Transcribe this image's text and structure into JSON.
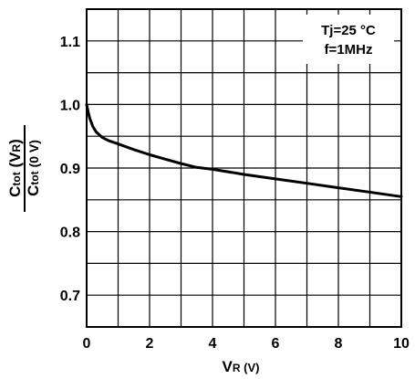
{
  "chart_data": {
    "type": "line",
    "annotation": [
      "Tj=25 °C",
      "f=1MHz"
    ],
    "xlabel": {
      "main": "V",
      "sub": "R",
      "unit": " (V)"
    },
    "ylabel": {
      "numerator": {
        "main": "C",
        "sub": "tot",
        "paren_main": " (V",
        "paren_sub": "R",
        "close": ")"
      },
      "denominator": {
        "main": "C",
        "sub": "tot",
        "rest": " (0 V)"
      }
    },
    "xlim": [
      0,
      10
    ],
    "ylim": [
      0.65,
      1.15
    ],
    "x_ticks": [
      0,
      2,
      4,
      6,
      8,
      10
    ],
    "x_tick_labels": [
      "0",
      "2",
      "4",
      "6",
      "8",
      "10"
    ],
    "y_ticks": [
      0.7,
      0.8,
      0.9,
      1.0,
      1.1
    ],
    "y_tick_labels": [
      "0.7",
      "0.8",
      "0.9",
      "1.0",
      "1.1"
    ],
    "x_grid_step": 1,
    "y_grid_step": 0.05,
    "grid": true,
    "series": [
      {
        "x": [
          0,
          0.05,
          0.1,
          0.2,
          0.3,
          0.5,
          0.7,
          1.0,
          1.5,
          2.0,
          2.5,
          3.0,
          3.5,
          4.0,
          5.0,
          6.0,
          7.0,
          8.0,
          9.0,
          10.0
        ],
        "y": [
          1.0,
          0.988,
          0.978,
          0.965,
          0.957,
          0.948,
          0.943,
          0.938,
          0.929,
          0.921,
          0.914,
          0.907,
          0.901,
          0.898,
          0.89,
          0.883,
          0.876,
          0.869,
          0.862,
          0.855
        ]
      }
    ]
  }
}
